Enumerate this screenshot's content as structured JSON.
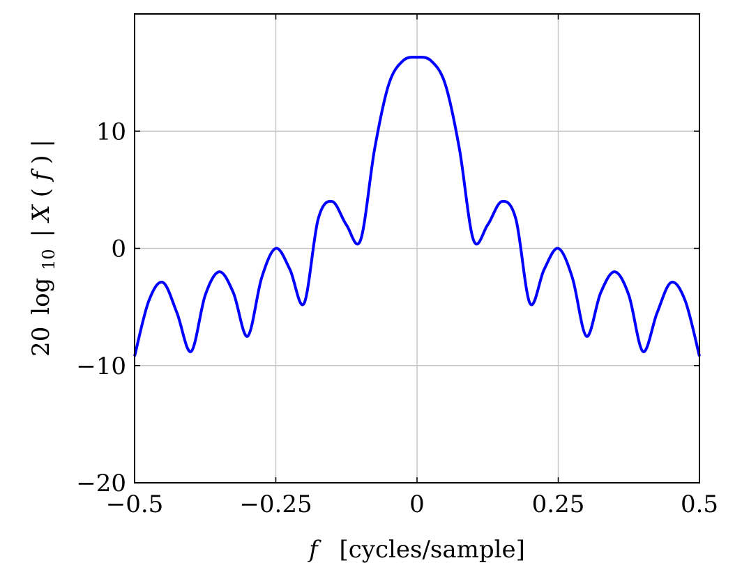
{
  "chart_data": {
    "type": "line",
    "title": "",
    "xlabel": {
      "symbol": "f",
      "unit": "[cycles/sample]"
    },
    "ylabel": {
      "prefix": "20",
      "func": "log",
      "subscript": "10",
      "pre_bar": "|",
      "var": "X",
      "open_paren": "(",
      "arg": "f",
      "close_paren": ")",
      "post_bar": "|"
    },
    "xlim": [
      -0.5,
      0.5
    ],
    "ylim": [
      -20,
      20
    ],
    "grid": true,
    "xticks": [
      -0.5,
      -0.25,
      0,
      0.25,
      0.5
    ],
    "xtick_labels": [
      "−0.5",
      "−0.25",
      "0",
      "0.25",
      "0.5"
    ],
    "yticks": [
      -20,
      -10,
      0,
      10
    ],
    "ytick_labels": [
      "−20",
      "−10",
      "0",
      "10"
    ],
    "series": [
      {
        "name": "20 log10 |X(f)|",
        "color": "#0000ff",
        "x": [
          -0.5,
          -0.475,
          -0.45,
          -0.425,
          -0.4,
          -0.375,
          -0.35,
          -0.325,
          -0.3,
          -0.275,
          -0.25,
          -0.225,
          -0.2,
          -0.175,
          -0.15,
          -0.125,
          -0.1,
          -0.075,
          -0.05,
          -0.025,
          0,
          0.025,
          0.05,
          0.075,
          0.1,
          0.125,
          0.15,
          0.175,
          0.2,
          0.225,
          0.25,
          0.275,
          0.3,
          0.325,
          0.35,
          0.375,
          0.4,
          0.425,
          0.45,
          0.475,
          0.5
        ],
        "y": [
          -9.2,
          -4.5,
          -2.9,
          -5.5,
          -8.8,
          -4.0,
          -2.0,
          -3.8,
          -7.5,
          -2.5,
          0.0,
          -1.8,
          -4.7,
          2.5,
          4.0,
          2.0,
          0.7,
          8.5,
          14.0,
          16.0,
          16.3,
          16.0,
          14.0,
          8.5,
          0.7,
          2.0,
          4.0,
          2.5,
          -4.7,
          -1.8,
          0.0,
          -2.5,
          -7.5,
          -3.8,
          -2.0,
          -4.0,
          -8.8,
          -5.5,
          -2.9,
          -4.5,
          -9.2
        ]
      }
    ]
  }
}
